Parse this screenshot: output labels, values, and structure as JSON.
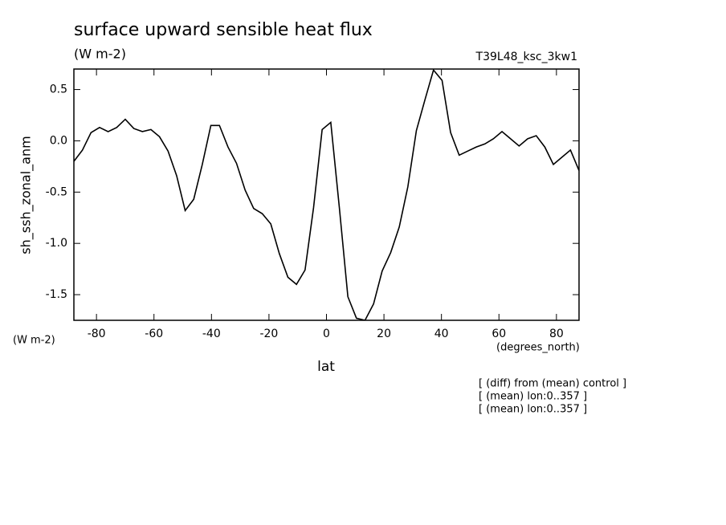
{
  "chart_data": {
    "type": "line",
    "title": "surface upward sensible heat flux",
    "subtitle": "(W m-2)",
    "run_label": "T39L48_ksc_3kw1",
    "y_label": "sh_ssh_zonal_anm",
    "y_units": "(W m-2)",
    "x_units": "(degrees_north)",
    "x_label": "lat",
    "notes": [
      "[ (diff) from (mean) control ]",
      "[ (mean) lon:0..357 ]",
      "[ (mean) lon:0..357 ]"
    ],
    "x": [
      -87.86,
      -84.88,
      -81.9,
      -78.93,
      -75.95,
      -72.97,
      -69.99,
      -67.01,
      -64.04,
      -61.06,
      -58.08,
      -55.1,
      -52.12,
      -49.15,
      -46.17,
      -43.19,
      -40.21,
      -37.23,
      -34.26,
      -31.28,
      -28.3,
      -25.32,
      -22.34,
      -19.37,
      -16.39,
      -13.41,
      -10.43,
      -7.45,
      -4.48,
      -1.5,
      1.5,
      4.48,
      7.45,
      10.43,
      13.41,
      16.39,
      19.37,
      22.34,
      25.32,
      28.3,
      31.28,
      34.26,
      37.23,
      40.21,
      43.19,
      46.17,
      49.15,
      52.12,
      55.1,
      58.08,
      61.06,
      64.04,
      67.01,
      69.99,
      72.97,
      75.95,
      78.93,
      81.9,
      84.88,
      87.86
    ],
    "series": [
      {
        "color": "#000000",
        "values": [
          -0.2,
          -0.09,
          0.08,
          0.13,
          0.09,
          0.13,
          0.21,
          0.12,
          0.09,
          0.11,
          0.04,
          -0.1,
          -0.34,
          -0.68,
          -0.57,
          -0.23,
          0.15,
          0.15,
          -0.06,
          -0.22,
          -0.48,
          -0.66,
          -0.71,
          -0.81,
          -1.1,
          -1.33,
          -1.4,
          -1.26,
          -0.65,
          0.11,
          0.18,
          -0.65,
          -1.52,
          -1.73,
          -1.75,
          -1.59,
          -1.27,
          -1.09,
          -0.84,
          -0.45,
          0.1,
          0.4,
          0.69,
          0.59,
          0.08,
          -0.14,
          -0.1,
          -0.06,
          -0.03,
          0.02,
          0.09,
          0.02,
          -0.05,
          0.02,
          0.05,
          -0.06,
          -0.23,
          -0.16,
          -0.09,
          -0.29
        ]
      }
    ],
    "xlim": [
      -87.86,
      87.86
    ],
    "ylim": [
      -1.75,
      0.7
    ],
    "xticks": [
      -80,
      -60,
      -40,
      -20,
      0,
      20,
      40,
      60,
      80
    ],
    "yticks": [
      0.5,
      {
        "value": 0,
        "label": "0.0"
      },
      -0.5,
      {
        "value": -1,
        "label": "-1.0"
      },
      -1.5
    ]
  }
}
